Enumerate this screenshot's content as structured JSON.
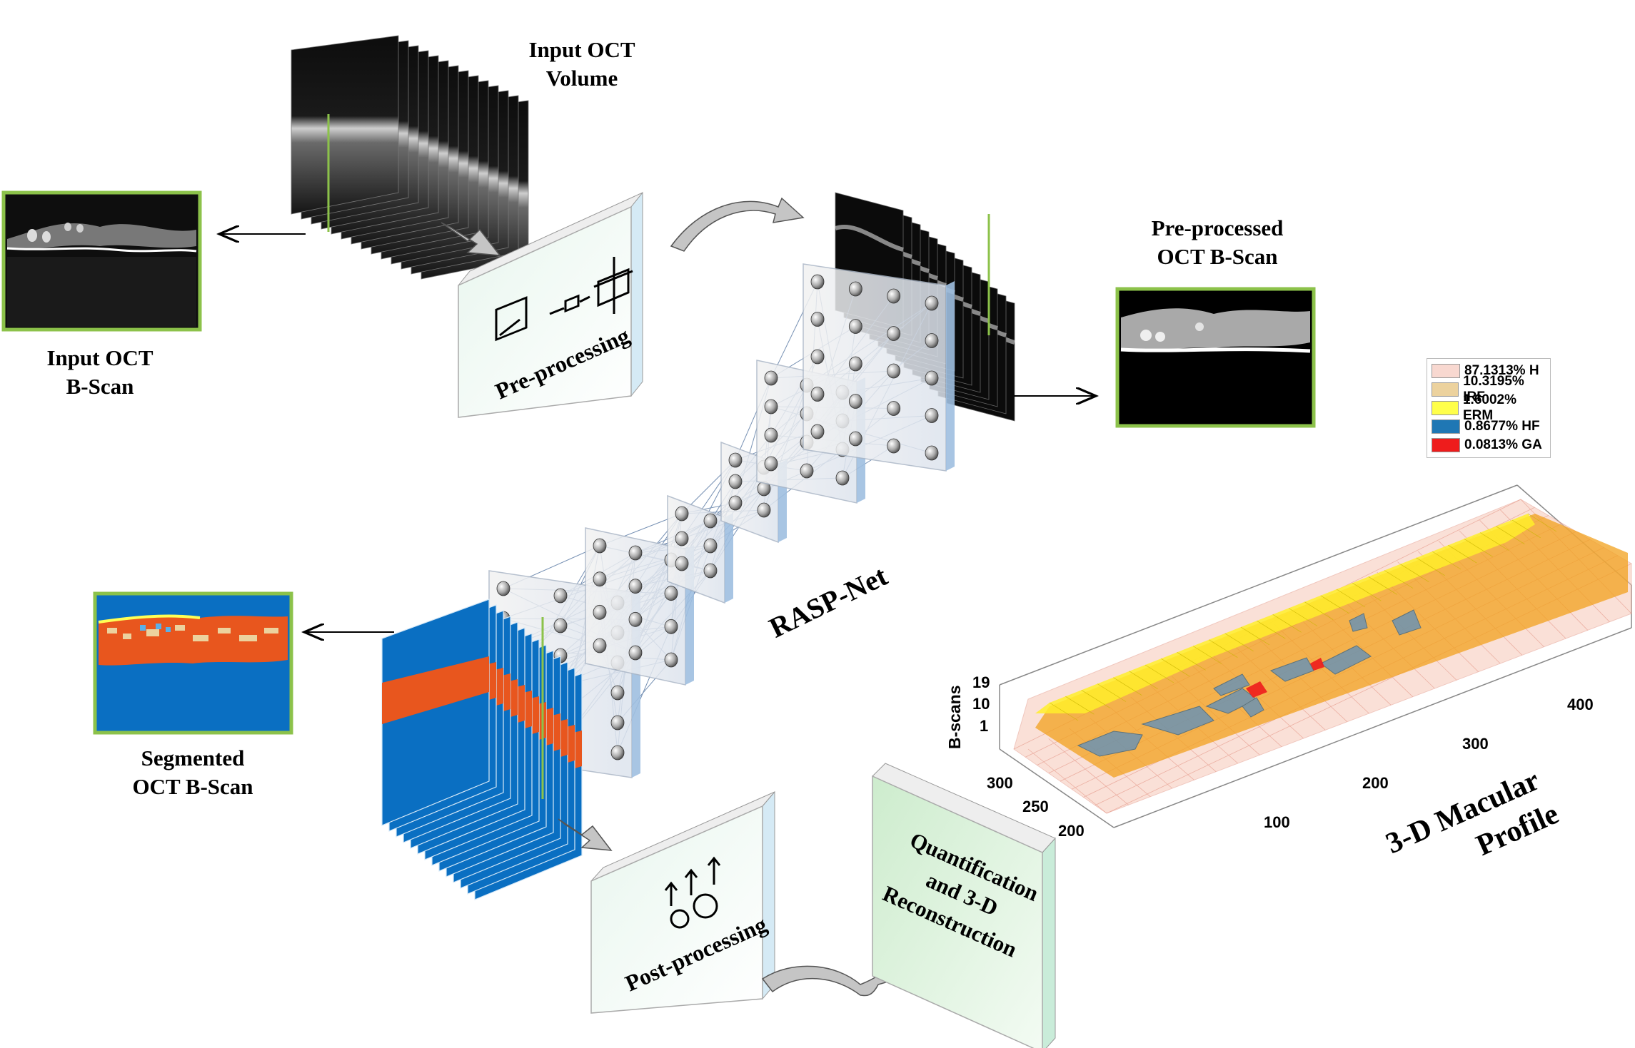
{
  "labels": {
    "input_volume_line1": "Input OCT",
    "input_volume_line2": "Volume",
    "input_bscan_line1": "Input OCT",
    "input_bscan_line2": "B-Scan",
    "preprocessed_line1": "Pre-processed",
    "preprocessed_line2": "OCT B-Scan",
    "segmented_line1": "Segmented",
    "segmented_line2": "OCT B-Scan",
    "network_name": "RASP-Net",
    "profile_line1": "3-D Macular",
    "profile_line2": "Profile"
  },
  "boxes": {
    "preprocessing": "Pre-processing",
    "postprocessing": "Post-processing",
    "quant_line1": "Quantification",
    "quant_line2": "and 3-D",
    "quant_line3": "Reconstruction"
  },
  "legend": [
    {
      "label": "87.1313% H",
      "color": "#f8d8d0"
    },
    {
      "label": "10.3195% IRF",
      "color": "#ecd29e"
    },
    {
      "label": "1.6002% ERM",
      "color": "#ffff4a"
    },
    {
      "label": "0.8677% HF",
      "color": "#1f77b4"
    },
    {
      "label": "0.0813% GA",
      "color": "#ee1c1c"
    }
  ],
  "axes": {
    "z_label": "B-scans",
    "z_ticks": [
      "19",
      "10",
      "1"
    ],
    "y_ticks": [
      "300",
      "250",
      "200"
    ],
    "x_ticks": [
      "100",
      "200",
      "300",
      "400"
    ]
  },
  "colors": {
    "frame_green": "#8cc24a",
    "seg_blue": "#0a6fc2",
    "seg_orange": "#e8561e",
    "arrow_gray": "#bdbdbd"
  }
}
